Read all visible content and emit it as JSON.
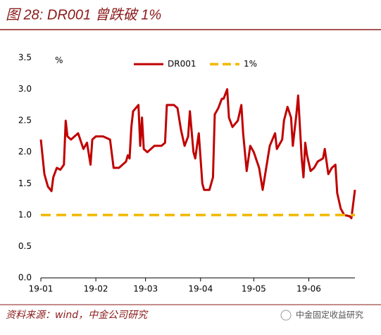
{
  "chart_data": {
    "type": "line",
    "title": "图 28: DR001 曾跌破 1%",
    "y_label": "%",
    "source": "资料来源：wind，中金公司研究",
    "watermark": "中金固定收益研究",
    "xlim": [
      0,
      177
    ],
    "xticks": [
      {
        "value": 0,
        "label": "19-01"
      },
      {
        "value": 31,
        "label": "19-02"
      },
      {
        "value": 59,
        "label": "19-03"
      },
      {
        "value": 90,
        "label": "19-04"
      },
      {
        "value": 120,
        "label": "19-05"
      },
      {
        "value": 151,
        "label": "19-06"
      }
    ],
    "ylim": [
      0,
      3.5
    ],
    "yticks": [
      {
        "value": 0,
        "label": "0.0"
      },
      {
        "value": 0.5,
        "label": "0.5"
      },
      {
        "value": 1,
        "label": "1.0"
      },
      {
        "value": 1.5,
        "label": "1.5"
      },
      {
        "value": 2,
        "label": "2.0"
      },
      {
        "value": 2.5,
        "label": "2.5"
      },
      {
        "value": 3,
        "label": "3.0"
      },
      {
        "value": 3.5,
        "label": "3.5"
      }
    ],
    "grid": false,
    "legend": "top",
    "series": [
      {
        "name": "DR001",
        "color": "#c00000",
        "dash": false,
        "x": [
          0,
          2,
          4,
          6,
          7,
          9,
          11,
          13,
          14,
          15,
          17,
          19,
          21,
          24,
          26,
          28,
          29,
          31,
          35,
          39,
          41,
          44,
          48,
          49,
          50,
          51,
          52,
          55,
          56,
          57,
          58,
          60,
          62,
          64,
          67,
          68,
          70,
          71,
          75,
          77,
          79,
          81,
          83,
          84,
          86,
          87,
          89,
          91,
          92,
          95,
          97,
          98,
          100,
          102,
          103,
          105,
          106,
          108,
          111,
          113,
          114,
          116,
          118,
          120,
          123,
          125,
          127,
          129,
          132,
          133,
          136,
          137,
          139,
          141,
          142,
          144,
          145,
          147,
          148,
          149,
          150,
          152,
          154,
          156,
          159,
          160,
          162,
          164,
          166,
          167,
          169,
          171,
          174,
          175,
          177
        ],
        "values": [
          2.2,
          1.65,
          1.45,
          1.38,
          1.6,
          1.75,
          1.72,
          1.8,
          2.5,
          2.25,
          2.2,
          2.25,
          2.3,
          2.05,
          2.15,
          1.8,
          2.2,
          2.25,
          2.25,
          2.2,
          1.75,
          1.75,
          1.85,
          1.95,
          1.9,
          2.4,
          2.65,
          2.75,
          2.1,
          2.55,
          2.05,
          2.0,
          2.05,
          2.1,
          2.1,
          2.1,
          2.15,
          2.75,
          2.75,
          2.7,
          2.35,
          2.1,
          2.25,
          2.65,
          2.0,
          1.9,
          2.3,
          1.5,
          1.4,
          1.4,
          1.6,
          2.6,
          2.7,
          2.85,
          2.85,
          3.0,
          2.55,
          2.4,
          2.5,
          2.75,
          2.3,
          1.7,
          2.1,
          2.0,
          1.75,
          1.4,
          1.75,
          2.1,
          2.3,
          2.05,
          2.2,
          2.5,
          2.72,
          2.55,
          2.1,
          2.6,
          2.9,
          1.9,
          1.6,
          2.15,
          1.95,
          1.7,
          1.75,
          1.85,
          1.9,
          2.05,
          1.65,
          1.75,
          1.8,
          1.35,
          1.1,
          1.0,
          0.98,
          0.95,
          1.4
        ]
      },
      {
        "name": "1%",
        "color": "#f2b800",
        "dash": true,
        "x": [
          0,
          177
        ],
        "values": [
          1,
          1
        ]
      }
    ]
  }
}
